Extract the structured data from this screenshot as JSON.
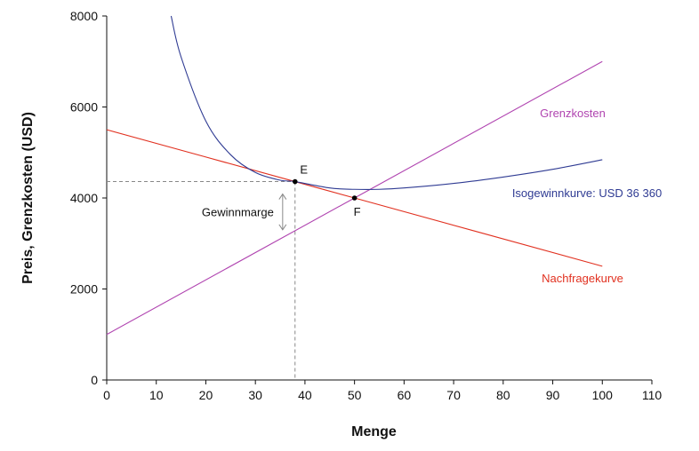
{
  "chart_data": {
    "type": "line",
    "xlabel": "Menge",
    "ylabel": "Preis, Grenzkosten (USD)",
    "xlim": [
      0,
      110
    ],
    "ylim": [
      0,
      8000
    ],
    "xticks": [
      0,
      10,
      20,
      30,
      40,
      50,
      60,
      70,
      80,
      90,
      100,
      110
    ],
    "yticks": [
      0,
      2000,
      4000,
      6000,
      8000
    ],
    "grid": false,
    "series": [
      {
        "name": "Nachfragekurve",
        "color": "#e1301f",
        "x": [
          0,
          38,
          50,
          100
        ],
        "y": [
          5500,
          4360,
          4000,
          2500
        ]
      },
      {
        "name": "Grenzkosten",
        "color": "#b044b0",
        "x": [
          0,
          50,
          100
        ],
        "y": [
          1000,
          4000,
          7000
        ]
      },
      {
        "name": "Isogewinnkurve: USD 36 360",
        "color": "#2f3b93",
        "x": [
          13,
          15,
          20,
          25,
          30,
          35,
          38,
          45,
          50,
          55,
          60,
          70,
          80,
          90,
          100
        ],
        "y": [
          8000,
          7100,
          5690,
          4950,
          4560,
          4390,
          4360,
          4220,
          4190,
          4190,
          4220,
          4320,
          4460,
          4630,
          4840
        ]
      }
    ],
    "points": [
      {
        "label": "E",
        "x": 38,
        "y": 4360
      },
      {
        "label": "F",
        "x": 50,
        "y": 4000
      }
    ],
    "annotations": {
      "margin_label": "Gewinnmarge",
      "margin_arrow": {
        "x": 35.5,
        "y_from": 4360,
        "y_to": 3300
      }
    }
  }
}
